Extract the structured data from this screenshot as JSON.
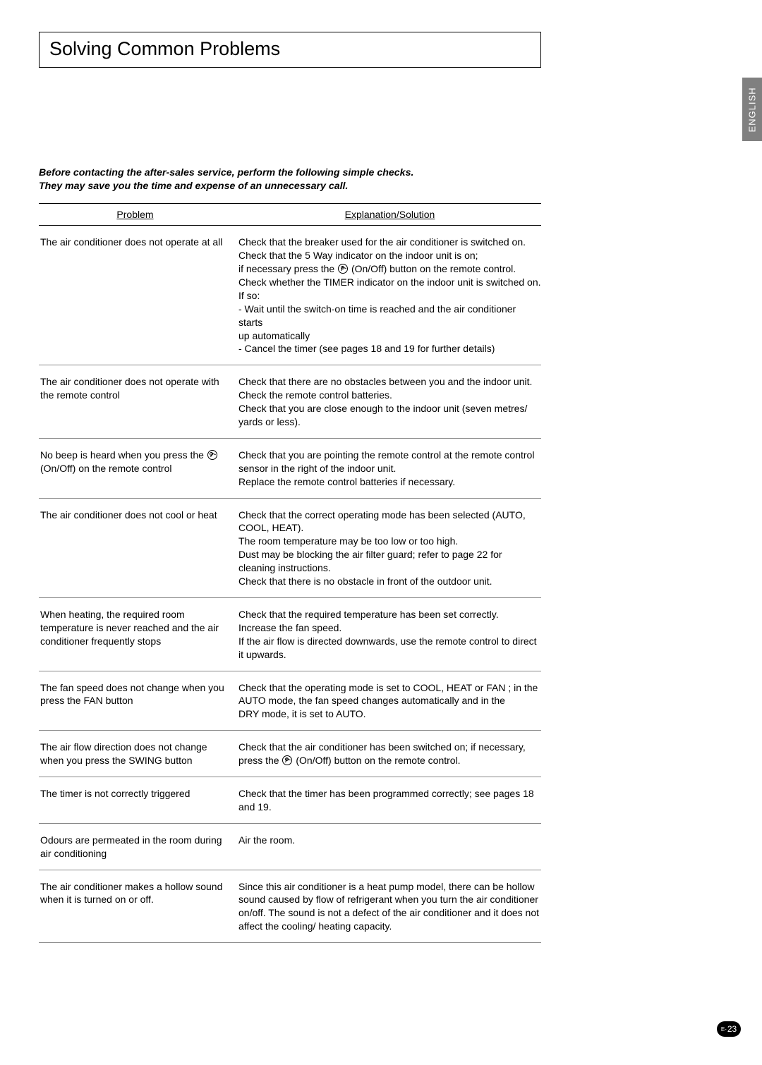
{
  "title": "Solving Common Problems",
  "side_tab": "ENGLISH",
  "page_prefix": "E-",
  "page_number": "23",
  "intro_line1": "Before contacting the after-sales service, perform the following simple checks.",
  "intro_line2": "They may save you the time and expense of an unnecessary call.",
  "header_problem": "Problem",
  "header_solution": "Explanation/Solution",
  "rows": [
    {
      "problem": "The air conditioner does not operate at all",
      "solution_pre": "Check that the breaker used for the air conditioner is switched on.\nCheck that the 5 Way indicator on the indoor unit is on;\nif necessary press the ",
      "solution_post": " (On/Off) button on the remote control.\nCheck whether the TIMER indicator on the indoor unit is switched on. If so:\n- Wait until the switch-on time is reached and the air conditioner starts\n  up automatically\n- Cancel the timer (see pages 18 and 19 for further details)",
      "has_icon": true
    },
    {
      "problem": "The air conditioner does not operate with the remote control",
      "solution": "Check that there are no obstacles between you and the indoor unit.\nCheck the remote control batteries.\nCheck that you are close enough to the indoor unit (seven metres/ yards or less)."
    },
    {
      "problem_pre": "No beep is heard when you press the ",
      "problem_post": " (On/Off) on the remote control",
      "problem_has_icon": true,
      "solution": "Check that you are pointing the remote control at the remote control sensor in the right of the indoor unit.\nReplace the remote control batteries if necessary."
    },
    {
      "problem": "The air conditioner does not cool or heat",
      "solution": "Check that the correct operating mode has been selected (AUTO, COOL, HEAT).\nThe room temperature may be too low or too high.\nDust may be blocking the air filter guard; refer to page 22 for cleaning instructions.\nCheck that there is no obstacle in front of the outdoor unit."
    },
    {
      "problem": "When heating, the required room temperature is never reached and the air conditioner frequently stops",
      "solution": "Check that the required temperature has been set correctly.\nIncrease the fan speed.\nIf the air flow is directed downwards, use the remote control to direct it upwards."
    },
    {
      "problem": "The fan speed does not change when you press the FAN button",
      "solution": "Check that the operating mode is set to COOL, HEAT or FAN ; in the AUTO mode, the fan speed changes automatically and in the \nDRY mode, it is set to AUTO."
    },
    {
      "problem": "The air flow direction does not change when you press the SWING button",
      "solution_pre": "Check that the air conditioner has been switched on; if necessary, press the ",
      "solution_post": " (On/Off) button on the remote control.",
      "has_icon": true
    },
    {
      "problem": "The timer is not correctly triggered",
      "solution": "Check that the timer has been programmed correctly; see pages 18 and 19."
    },
    {
      "problem": "Odours are permeated in the room during air conditioning",
      "solution": "Air the room."
    },
    {
      "problem": "The air conditioner makes a hollow sound when it is turned on or off.",
      "solution": "Since this air conditioner is a heat pump model, there can be hollow sound  caused by flow of refrigerant when you turn the air conditioner on/off. The sound is not a defect of the air conditioner and it does not affect the cooling/ heating capacity."
    }
  ]
}
